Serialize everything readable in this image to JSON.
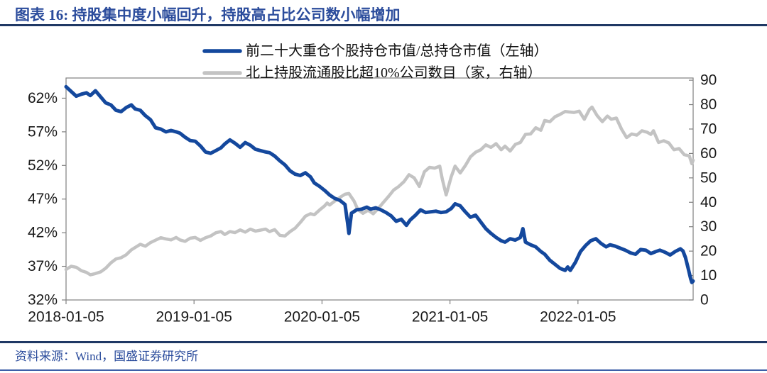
{
  "page": {
    "title": "图表 16: 持股集中度小幅回升，持股高占比公司数小幅增加",
    "source": "资料来源：Wind，国盛证券研究所"
  },
  "colors": {
    "title_blue": "#2b4c9c",
    "rule_dark": "#1f3864",
    "rule_bottom": "#3d5fa8",
    "series_blue": "#14489d",
    "series_gray": "#c3c3c3",
    "axis_frame": "#808080",
    "axis_text": "#1a1a1a"
  },
  "chart_data": {
    "type": "line",
    "title": "",
    "grid": false,
    "legend_position": "top-center",
    "x_range": [
      2018.01,
      2022.91
    ],
    "x_ticks": [
      {
        "pos": 2018.01,
        "label": "2018-01-05"
      },
      {
        "pos": 2019.01,
        "label": "2019-01-05"
      },
      {
        "pos": 2020.01,
        "label": "2020-01-05"
      },
      {
        "pos": 2021.01,
        "label": "2021-01-05"
      },
      {
        "pos": 2022.01,
        "label": "2022-01-05"
      }
    ],
    "left_axis": {
      "range": [
        32,
        65
      ],
      "ticks": [
        32,
        37,
        42,
        47,
        52,
        57,
        62
      ],
      "suffix": "%"
    },
    "right_axis": {
      "range": [
        0,
        90.9
      ],
      "ticks": [
        0,
        10,
        20,
        30,
        40,
        50,
        60,
        70,
        80,
        90
      ],
      "suffix": ""
    },
    "series": [
      {
        "name": "北上持股流通股比超10%公司数目（家，右轴）",
        "axis": "right",
        "color_key": "series_gray",
        "stroke_width": 4.5,
        "points": [
          [
            2018.01,
            12.5
          ],
          [
            2018.05,
            13.8
          ],
          [
            2018.09,
            13.4
          ],
          [
            2018.13,
            12.0
          ],
          [
            2018.17,
            11.3
          ],
          [
            2018.2,
            10.3
          ],
          [
            2018.24,
            10.8
          ],
          [
            2018.28,
            11.5
          ],
          [
            2018.32,
            13.0
          ],
          [
            2018.36,
            15.2
          ],
          [
            2018.4,
            16.8
          ],
          [
            2018.44,
            17.3
          ],
          [
            2018.48,
            18.5
          ],
          [
            2018.52,
            20.5
          ],
          [
            2018.55,
            21.5
          ],
          [
            2018.59,
            22.8
          ],
          [
            2018.63,
            22.0
          ],
          [
            2018.67,
            23.5
          ],
          [
            2018.71,
            24.5
          ],
          [
            2018.75,
            25.5
          ],
          [
            2018.79,
            25.0
          ],
          [
            2018.83,
            24.6
          ],
          [
            2018.87,
            25.6
          ],
          [
            2018.9,
            24.6
          ],
          [
            2018.94,
            24.0
          ],
          [
            2018.98,
            25.3
          ],
          [
            2019.02,
            25.6
          ],
          [
            2019.06,
            24.4
          ],
          [
            2019.1,
            25.5
          ],
          [
            2019.14,
            26.2
          ],
          [
            2019.18,
            27.5
          ],
          [
            2019.22,
            28.0
          ],
          [
            2019.25,
            26.8
          ],
          [
            2019.29,
            28.0
          ],
          [
            2019.33,
            27.6
          ],
          [
            2019.37,
            28.7
          ],
          [
            2019.41,
            27.8
          ],
          [
            2019.45,
            29.0
          ],
          [
            2019.49,
            28.2
          ],
          [
            2019.53,
            28.6
          ],
          [
            2019.57,
            29.0
          ],
          [
            2019.6,
            28.0
          ],
          [
            2019.64,
            28.8
          ],
          [
            2019.68,
            26.5
          ],
          [
            2019.72,
            26.2
          ],
          [
            2019.76,
            28.0
          ],
          [
            2019.8,
            29.4
          ],
          [
            2019.84,
            31.7
          ],
          [
            2019.88,
            34.3
          ],
          [
            2019.92,
            35.3
          ],
          [
            2019.95,
            34.9
          ],
          [
            2019.99,
            36.8
          ],
          [
            2020.03,
            38.5
          ],
          [
            2020.05,
            39.7
          ],
          [
            2020.07,
            38.9
          ],
          [
            2020.11,
            40.5
          ],
          [
            2020.15,
            42.0
          ],
          [
            2020.19,
            43.3
          ],
          [
            2020.22,
            43.6
          ],
          [
            2020.26,
            40.5
          ],
          [
            2020.29,
            37.0
          ],
          [
            2020.33,
            35.5
          ],
          [
            2020.37,
            36.8
          ],
          [
            2020.41,
            35.3
          ],
          [
            2020.45,
            37.5
          ],
          [
            2020.49,
            40.0
          ],
          [
            2020.53,
            42.4
          ],
          [
            2020.57,
            45.0
          ],
          [
            2020.61,
            46.5
          ],
          [
            2020.65,
            48.4
          ],
          [
            2020.69,
            51.3
          ],
          [
            2020.73,
            50.0
          ],
          [
            2020.77,
            46.5
          ],
          [
            2020.81,
            52.5
          ],
          [
            2020.85,
            54.3
          ],
          [
            2020.89,
            54.0
          ],
          [
            2020.93,
            54.8
          ],
          [
            2020.95,
            49.5
          ],
          [
            2020.98,
            43.0
          ],
          [
            2021.02,
            50.5
          ],
          [
            2021.05,
            54.8
          ],
          [
            2021.09,
            52.0
          ],
          [
            2021.13,
            55.0
          ],
          [
            2021.17,
            58.6
          ],
          [
            2021.21,
            60.5
          ],
          [
            2021.25,
            61.5
          ],
          [
            2021.29,
            63.5
          ],
          [
            2021.33,
            62.5
          ],
          [
            2021.37,
            64.0
          ],
          [
            2021.41,
            61.5
          ],
          [
            2021.44,
            63.0
          ],
          [
            2021.48,
            61.0
          ],
          [
            2021.52,
            63.7
          ],
          [
            2021.56,
            64.5
          ],
          [
            2021.6,
            67.8
          ],
          [
            2021.64,
            68.0
          ],
          [
            2021.68,
            70.5
          ],
          [
            2021.72,
            69.5
          ],
          [
            2021.75,
            73.5
          ],
          [
            2021.79,
            73.0
          ],
          [
            2021.83,
            75.0
          ],
          [
            2021.87,
            76.0
          ],
          [
            2021.91,
            77.2
          ],
          [
            2021.94,
            77.0
          ],
          [
            2021.98,
            76.8
          ],
          [
            2022.02,
            77.3
          ],
          [
            2022.06,
            74.0
          ],
          [
            2022.1,
            78.0
          ],
          [
            2022.12,
            79.0
          ],
          [
            2022.16,
            75.5
          ],
          [
            2022.2,
            73.0
          ],
          [
            2022.24,
            75.3
          ],
          [
            2022.27,
            74.0
          ],
          [
            2022.31,
            74.5
          ],
          [
            2022.35,
            70.0
          ],
          [
            2022.39,
            66.5
          ],
          [
            2022.43,
            68.0
          ],
          [
            2022.47,
            67.5
          ],
          [
            2022.51,
            69.3
          ],
          [
            2022.55,
            68.7
          ],
          [
            2022.58,
            67.8
          ],
          [
            2022.6,
            69.3
          ],
          [
            2022.64,
            64.5
          ],
          [
            2022.68,
            65.2
          ],
          [
            2022.72,
            64.3
          ],
          [
            2022.76,
            61.5
          ],
          [
            2022.8,
            62.0
          ],
          [
            2022.84,
            59.5
          ],
          [
            2022.88,
            59.0
          ],
          [
            2022.9,
            55.8
          ],
          [
            2022.91,
            57.2
          ]
        ]
      },
      {
        "name": "前二十大重仓个股持仓市值/总持仓市值（左轴）",
        "axis": "left",
        "color_key": "series_blue",
        "stroke_width": 5,
        "points": [
          [
            2018.01,
            63.7
          ],
          [
            2018.05,
            63.0
          ],
          [
            2018.09,
            62.3
          ],
          [
            2018.13,
            62.6
          ],
          [
            2018.17,
            62.8
          ],
          [
            2018.2,
            62.4
          ],
          [
            2018.24,
            63.1
          ],
          [
            2018.28,
            62.2
          ],
          [
            2018.32,
            61.3
          ],
          [
            2018.36,
            61.0
          ],
          [
            2018.4,
            60.2
          ],
          [
            2018.44,
            60.0
          ],
          [
            2018.48,
            60.6
          ],
          [
            2018.52,
            61.0
          ],
          [
            2018.55,
            60.4
          ],
          [
            2018.59,
            60.2
          ],
          [
            2018.63,
            59.4
          ],
          [
            2018.67,
            58.8
          ],
          [
            2018.71,
            57.6
          ],
          [
            2018.75,
            57.4
          ],
          [
            2018.79,
            57.0
          ],
          [
            2018.83,
            57.2
          ],
          [
            2018.87,
            57.0
          ],
          [
            2018.9,
            56.8
          ],
          [
            2018.94,
            56.2
          ],
          [
            2018.98,
            55.7
          ],
          [
            2019.02,
            55.6
          ],
          [
            2019.06,
            54.9
          ],
          [
            2019.1,
            54.0
          ],
          [
            2019.14,
            53.8
          ],
          [
            2019.18,
            54.2
          ],
          [
            2019.22,
            54.6
          ],
          [
            2019.25,
            55.2
          ],
          [
            2019.29,
            55.8
          ],
          [
            2019.33,
            55.3
          ],
          [
            2019.37,
            54.7
          ],
          [
            2019.41,
            55.4
          ],
          [
            2019.45,
            55.0
          ],
          [
            2019.49,
            54.4
          ],
          [
            2019.53,
            54.2
          ],
          [
            2019.57,
            54.0
          ],
          [
            2019.6,
            53.9
          ],
          [
            2019.64,
            53.4
          ],
          [
            2019.68,
            52.7
          ],
          [
            2019.72,
            52.1
          ],
          [
            2019.76,
            51.2
          ],
          [
            2019.8,
            50.7
          ],
          [
            2019.84,
            50.5
          ],
          [
            2019.88,
            50.9
          ],
          [
            2019.92,
            50.3
          ],
          [
            2019.95,
            49.4
          ],
          [
            2019.99,
            48.9
          ],
          [
            2020.03,
            48.3
          ],
          [
            2020.07,
            47.6
          ],
          [
            2020.11,
            47.1
          ],
          [
            2020.15,
            46.8
          ],
          [
            2020.19,
            46.2
          ],
          [
            2020.21,
            43.5
          ],
          [
            2020.22,
            41.9
          ],
          [
            2020.24,
            44.9
          ],
          [
            2020.28,
            45.4
          ],
          [
            2020.32,
            45.5
          ],
          [
            2020.36,
            45.8
          ],
          [
            2020.39,
            45.5
          ],
          [
            2020.43,
            45.7
          ],
          [
            2020.47,
            45.4
          ],
          [
            2020.51,
            45.0
          ],
          [
            2020.55,
            44.5
          ],
          [
            2020.59,
            43.7
          ],
          [
            2020.63,
            44.0
          ],
          [
            2020.67,
            43.1
          ],
          [
            2020.7,
            43.9
          ],
          [
            2020.74,
            44.6
          ],
          [
            2020.78,
            45.4
          ],
          [
            2020.82,
            45.0
          ],
          [
            2020.86,
            45.1
          ],
          [
            2020.9,
            45.2
          ],
          [
            2020.94,
            45.0
          ],
          [
            2020.98,
            45.1
          ],
          [
            2021.02,
            45.6
          ],
          [
            2021.05,
            46.3
          ],
          [
            2021.09,
            46.0
          ],
          [
            2021.13,
            45.1
          ],
          [
            2021.17,
            44.3
          ],
          [
            2021.21,
            44.6
          ],
          [
            2021.25,
            43.6
          ],
          [
            2021.29,
            42.6
          ],
          [
            2021.33,
            41.9
          ],
          [
            2021.37,
            41.3
          ],
          [
            2021.41,
            40.8
          ],
          [
            2021.44,
            40.6
          ],
          [
            2021.48,
            41.1
          ],
          [
            2021.52,
            40.9
          ],
          [
            2021.56,
            41.3
          ],
          [
            2021.58,
            42.6
          ],
          [
            2021.6,
            40.6
          ],
          [
            2021.64,
            40.2
          ],
          [
            2021.68,
            39.9
          ],
          [
            2021.72,
            39.2
          ],
          [
            2021.75,
            38.8
          ],
          [
            2021.79,
            37.9
          ],
          [
            2021.83,
            37.3
          ],
          [
            2021.87,
            36.7
          ],
          [
            2021.91,
            36.4
          ],
          [
            2021.93,
            36.9
          ],
          [
            2021.95,
            36.4
          ],
          [
            2021.99,
            37.6
          ],
          [
            2022.03,
            39.2
          ],
          [
            2022.07,
            40.1
          ],
          [
            2022.11,
            40.8
          ],
          [
            2022.15,
            41.1
          ],
          [
            2022.19,
            40.4
          ],
          [
            2022.23,
            39.9
          ],
          [
            2022.26,
            40.2
          ],
          [
            2022.3,
            40.0
          ],
          [
            2022.34,
            39.7
          ],
          [
            2022.38,
            39.4
          ],
          [
            2022.42,
            39.0
          ],
          [
            2022.46,
            38.8
          ],
          [
            2022.5,
            39.5
          ],
          [
            2022.54,
            39.4
          ],
          [
            2022.58,
            38.9
          ],
          [
            2022.62,
            39.2
          ],
          [
            2022.65,
            39.4
          ],
          [
            2022.69,
            39.1
          ],
          [
            2022.73,
            38.7
          ],
          [
            2022.77,
            39.2
          ],
          [
            2022.81,
            39.6
          ],
          [
            2022.83,
            39.3
          ],
          [
            2022.85,
            38.3
          ],
          [
            2022.87,
            36.8
          ],
          [
            2022.89,
            35.2
          ],
          [
            2022.9,
            34.6
          ],
          [
            2022.91,
            34.8
          ]
        ]
      }
    ]
  }
}
